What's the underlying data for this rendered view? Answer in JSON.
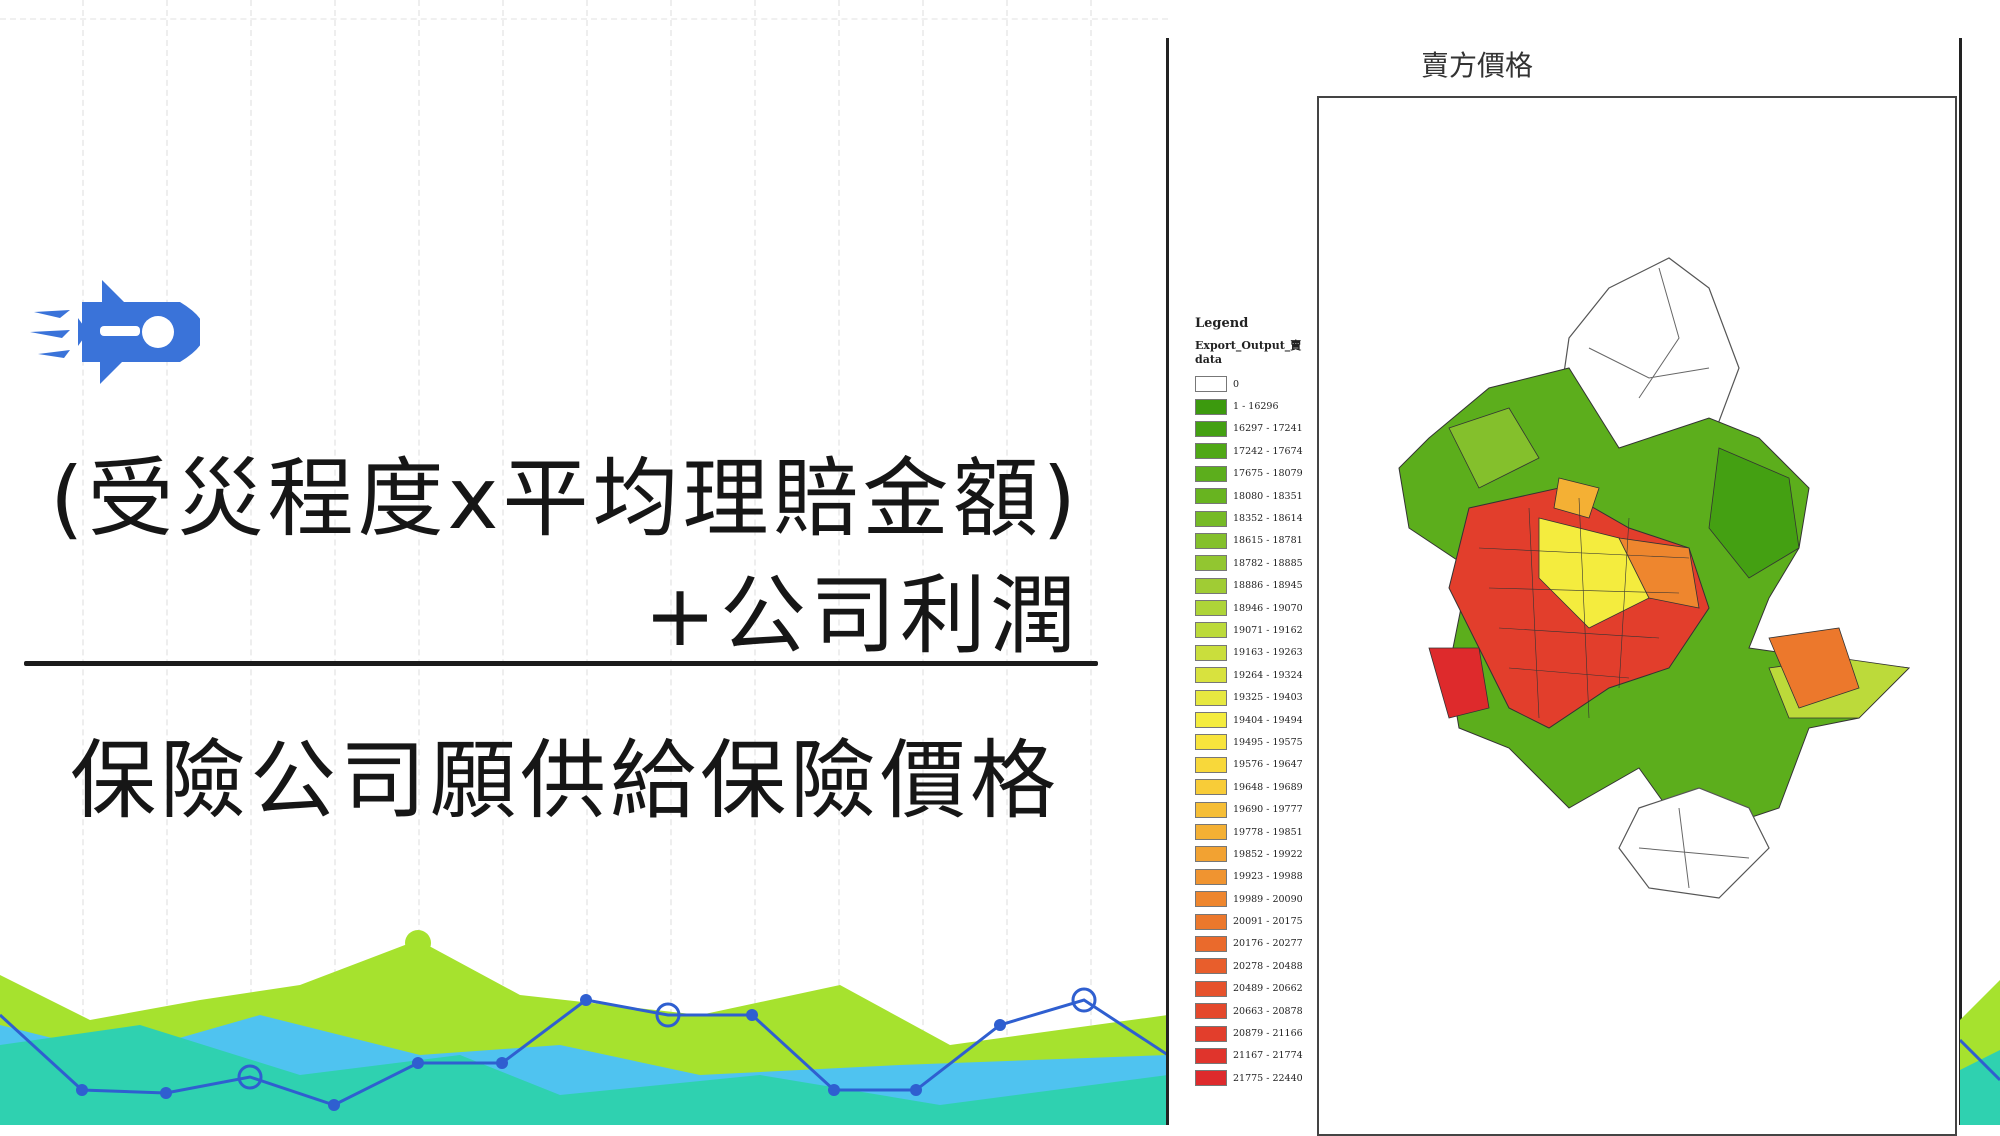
{
  "slide": {
    "title_line1": "(受災程度x平均理賠金額)",
    "title_line2": "+公司利潤",
    "subtitle": "保險公司願供給保險價格"
  },
  "map": {
    "title": "賣方價格",
    "legend_title": "Legend",
    "legend_field": "Export_Output_賣 data",
    "legend": [
      {
        "label": "0",
        "color": "#ffffff"
      },
      {
        "label": "1 - 16296",
        "color": "#3c9a0e"
      },
      {
        "label": "16297 - 17241",
        "color": "#44a012"
      },
      {
        "label": "17242 - 17674",
        "color": "#50a816"
      },
      {
        "label": "17675 - 18079",
        "color": "#5cae1c"
      },
      {
        "label": "18080 - 18351",
        "color": "#68b420"
      },
      {
        "label": "18352 - 18614",
        "color": "#76ba26"
      },
      {
        "label": "18615 - 18781",
        "color": "#84c02c"
      },
      {
        "label": "18782 - 18885",
        "color": "#92c630"
      },
      {
        "label": "18886 - 18945",
        "color": "#a0cc34"
      },
      {
        "label": "18946 - 19070",
        "color": "#aed438"
      },
      {
        "label": "19071 - 19162",
        "color": "#bcda3a"
      },
      {
        "label": "19163 - 19263",
        "color": "#cade3c"
      },
      {
        "label": "19264 - 19324",
        "color": "#d8e23e"
      },
      {
        "label": "19325 - 19403",
        "color": "#e6e840"
      },
      {
        "label": "19404 - 19494",
        "color": "#f4ec3e"
      },
      {
        "label": "19495 - 19575",
        "color": "#f8e43c"
      },
      {
        "label": "19576 - 19647",
        "color": "#f8d83a"
      },
      {
        "label": "19648 - 19689",
        "color": "#f8cc38"
      },
      {
        "label": "19690 - 19777",
        "color": "#f6be36"
      },
      {
        "label": "19778 - 19851",
        "color": "#f4b034"
      },
      {
        "label": "19852 - 19922",
        "color": "#f2a232"
      },
      {
        "label": "19923 - 19988",
        "color": "#f09430"
      },
      {
        "label": "19989 - 20090",
        "color": "#ee862e"
      },
      {
        "label": "20091 - 20175",
        "color": "#ec782c"
      },
      {
        "label": "20176 - 20277",
        "color": "#ea6a2c"
      },
      {
        "label": "20278 - 20488",
        "color": "#e85e2c"
      },
      {
        "label": "20489 - 20662",
        "color": "#e6522c"
      },
      {
        "label": "20663 - 20878",
        "color": "#e4482c"
      },
      {
        "label": "20879 - 21166",
        "color": "#e23e2c"
      },
      {
        "label": "21167 - 21774",
        "color": "#e0342c"
      },
      {
        "label": "21775 - 22440",
        "color": "#de2a2c"
      }
    ]
  },
  "colors": {
    "accent_blue": "#3a73d9",
    "lime": "#a6e22e",
    "teal": "#2fd1b0",
    "sky": "#4fc3f0"
  }
}
